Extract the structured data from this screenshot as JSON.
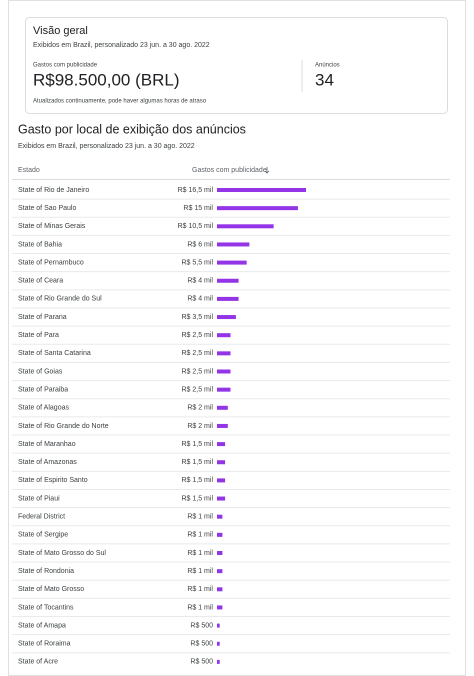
{
  "overview": {
    "title": "Visão geral",
    "subtitle": "Exibidos em Brazil, personalizado 23 jun. a 30 ago. 2022",
    "spend_label": "Gastos com publicidade",
    "spend": "R$98.500,00 (BRL)",
    "ads_label": "Anúncios",
    "ads": "34",
    "note": "Atualizados continuamente, pode haver algumas horas de atraso"
  },
  "table": {
    "title": "Gasto por local de exibição dos anúncios",
    "subtitle": "Exibidos em Brazil, personalizado 23 jun. a 30 ago. 2022",
    "columns": [
      "Estado",
      "Gastos com publicidade"
    ],
    "rows": [
      {
        "state": "State of Rio de Janeiro",
        "spend": "R$ 16,5 mil",
        "value": 16500
      },
      {
        "state": "State of Sao Paulo",
        "spend": "R$ 15 mil",
        "value": 15000
      },
      {
        "state": "State of Minas Gerais",
        "spend": "R$ 10,5 mil",
        "value": 10500
      },
      {
        "state": "State of Bahia",
        "spend": "R$ 6 mil",
        "value": 6000
      },
      {
        "state": "State of Pernambuco",
        "spend": "R$ 5,5 mil",
        "value": 5500
      },
      {
        "state": "State of Ceara",
        "spend": "R$ 4 mil",
        "value": 4000
      },
      {
        "state": "State of Rio Grande do Sul",
        "spend": "R$ 4 mil",
        "value": 4000
      },
      {
        "state": "State of Parana",
        "spend": "R$ 3,5 mil",
        "value": 3500
      },
      {
        "state": "State of Para",
        "spend": "R$ 2,5 mil",
        "value": 2500
      },
      {
        "state": "State of Santa Catarina",
        "spend": "R$ 2,5 mil",
        "value": 2500
      },
      {
        "state": "State of Goias",
        "spend": "R$ 2,5 mil",
        "value": 2500
      },
      {
        "state": "State of Paraiba",
        "spend": "R$ 2,5 mil",
        "value": 2500
      },
      {
        "state": "State of Alagoas",
        "spend": "R$ 2 mil",
        "value": 2000
      },
      {
        "state": "State of Rio Grande do Norte",
        "spend": "R$ 2 mil",
        "value": 2000
      },
      {
        "state": "State of Maranhao",
        "spend": "R$ 1,5 mil",
        "value": 1500
      },
      {
        "state": "State of Amazonas",
        "spend": "R$ 1,5 mil",
        "value": 1500
      },
      {
        "state": "State of Espirito Santo",
        "spend": "R$ 1,5 mil",
        "value": 1500
      },
      {
        "state": "State of Piaui",
        "spend": "R$ 1,5 mil",
        "value": 1500
      },
      {
        "state": "Federal District",
        "spend": "R$ 1 mil",
        "value": 1000
      },
      {
        "state": "State of Sergipe",
        "spend": "R$ 1 mil",
        "value": 1000
      },
      {
        "state": "State of Mato Grosso do Sul",
        "spend": "R$ 1 mil",
        "value": 1000
      },
      {
        "state": "State of Rondonia",
        "spend": "R$ 1 mil",
        "value": 1000
      },
      {
        "state": "State of Mato Grosso",
        "spend": "R$ 1 mil",
        "value": 1000
      },
      {
        "state": "State of Tocantins",
        "spend": "R$ 1 mil",
        "value": 1000
      },
      {
        "state": "State of Amapa",
        "spend": "R$ 500",
        "value": 500
      },
      {
        "state": "State of Roraima",
        "spend": "R$ 500",
        "value": 500
      },
      {
        "state": "State of Acre",
        "spend": "R$ 500",
        "value": 500
      }
    ]
  }
}
